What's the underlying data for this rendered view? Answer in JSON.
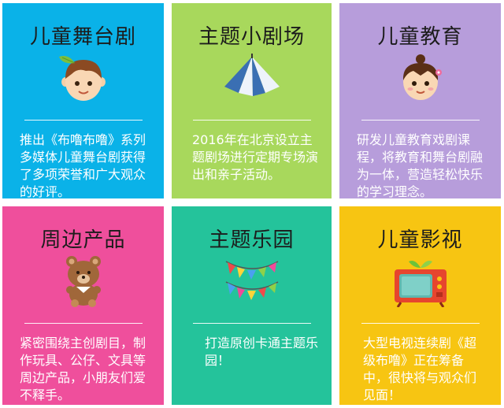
{
  "cards": [
    {
      "title": "儿童舞台剧",
      "icon": "boy-with-leaf-icon",
      "description": "推出《布噜布噜》系列多媒体儿童舞台剧获得了多项荣誉和广大观众的好评。",
      "color": "#0ab2e8"
    },
    {
      "title": "主题小剧场",
      "icon": "tent-icon",
      "description": "2016年在北京设立主题剧场进行定期专场演出和亲子活动。",
      "color": "#a8d85c"
    },
    {
      "title": "儿童教育",
      "icon": "girl-icon",
      "description": "研发儿童教育戏剧课程，将教育和舞台剧融为一体，营造轻松快乐的学习理念。",
      "color": "#b79ddb"
    },
    {
      "title": "周边产品",
      "icon": "teddy-bear-icon",
      "description": "紧密围绕主创剧目，制作玩具、公仔、文具等周边产品，小朋友们爱不释手。",
      "color": "#ef4f9c"
    },
    {
      "title": "主题乐园",
      "icon": "bunting-flags-icon",
      "description": "打造原创卡通主题乐园！",
      "color": "#24c39b"
    },
    {
      "title": "儿童影视",
      "icon": "retro-tv-icon",
      "description": "大型电视连续剧《超级布噜》正在筹备中，很快将与观众们见面！",
      "color": "#f7c512"
    }
  ]
}
